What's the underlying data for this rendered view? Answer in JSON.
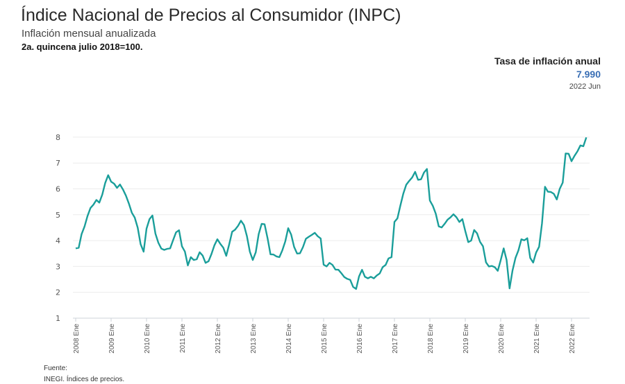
{
  "header": {
    "title": "Índice Nacional de Precios al Consumidor (INPC)",
    "subtitle": "Inflación mensual anualizada",
    "base": "2a. quincena julio 2018=100."
  },
  "kpi": {
    "label": "Tasa de inflación anual",
    "value": "7.990",
    "date": "2022 Jun",
    "value_color": "#3a6fb5"
  },
  "source": {
    "label": "Fuente:",
    "text": "INEGI. Índices de precios."
  },
  "chart_data": {
    "type": "line",
    "title": "",
    "xlabel": "",
    "ylabel": "",
    "ylim": [
      1,
      8
    ],
    "yticks": [
      "1",
      "2",
      "3",
      "4",
      "5",
      "6",
      "7",
      "8"
    ],
    "xticks": [
      "2008 Ene",
      "2009 Ene",
      "2010 Ene",
      "2011 Ene",
      "2012 Ene",
      "2013 Ene",
      "2014 Ene",
      "2015 Ene",
      "2016 Ene",
      "2017 Ene",
      "2018 Ene",
      "2019 Ene",
      "2020 Ene",
      "2021 Ene",
      "2022 Ene"
    ],
    "x_start": "2008 Ene",
    "x_end": "2022 Jun",
    "frequency": "monthly",
    "grid": true,
    "line_color": "#1a9e9a",
    "series": [
      {
        "values": [
          3.7,
          3.72,
          4.25,
          4.55,
          4.95,
          5.26,
          5.39,
          5.57,
          5.47,
          5.78,
          6.23,
          6.53,
          6.28,
          6.2,
          6.04,
          6.17,
          5.98,
          5.74,
          5.44,
          5.08,
          4.89,
          4.5,
          3.86,
          3.57,
          4.46,
          4.83,
          4.97,
          4.27,
          3.92,
          3.69,
          3.64,
          3.68,
          3.7,
          4.02,
          4.32,
          4.4,
          3.78,
          3.57,
          3.04,
          3.36,
          3.25,
          3.28,
          3.55,
          3.42,
          3.14,
          3.2,
          3.48,
          3.82,
          4.05,
          3.87,
          3.73,
          3.41,
          3.85,
          4.34,
          4.42,
          4.57,
          4.77,
          4.6,
          4.18,
          3.57,
          3.25,
          3.55,
          4.25,
          4.65,
          4.63,
          4.09,
          3.47,
          3.46,
          3.39,
          3.36,
          3.62,
          3.97,
          4.48,
          4.23,
          3.76,
          3.5,
          3.51,
          3.75,
          4.07,
          4.15,
          4.22,
          4.3,
          4.17,
          4.08,
          3.07,
          3.0,
          3.14,
          3.06,
          2.88,
          2.87,
          2.74,
          2.59,
          2.52,
          2.48,
          2.21,
          2.13,
          2.61,
          2.87,
          2.6,
          2.54,
          2.6,
          2.54,
          2.65,
          2.73,
          2.97,
          3.06,
          3.31,
          3.36,
          4.72,
          4.86,
          5.35,
          5.82,
          6.16,
          6.31,
          6.44,
          6.66,
          6.35,
          6.37,
          6.63,
          6.77,
          5.55,
          5.34,
          5.04,
          4.55,
          4.51,
          4.65,
          4.81,
          4.9,
          5.02,
          4.9,
          4.72,
          4.83,
          4.37,
          3.94,
          4.0,
          4.41,
          4.28,
          3.95,
          3.78,
          3.16,
          3.0,
          3.02,
          2.97,
          2.83,
          3.24,
          3.7,
          3.25,
          2.15,
          2.84,
          3.33,
          3.62,
          4.05,
          4.01,
          4.09,
          3.33,
          3.15,
          3.54,
          3.76,
          4.67,
          6.08,
          5.89,
          5.88,
          5.81,
          5.59,
          6.0,
          6.24,
          7.37,
          7.36,
          7.07,
          7.28,
          7.45,
          7.68,
          7.65,
          7.99
        ]
      }
    ]
  }
}
